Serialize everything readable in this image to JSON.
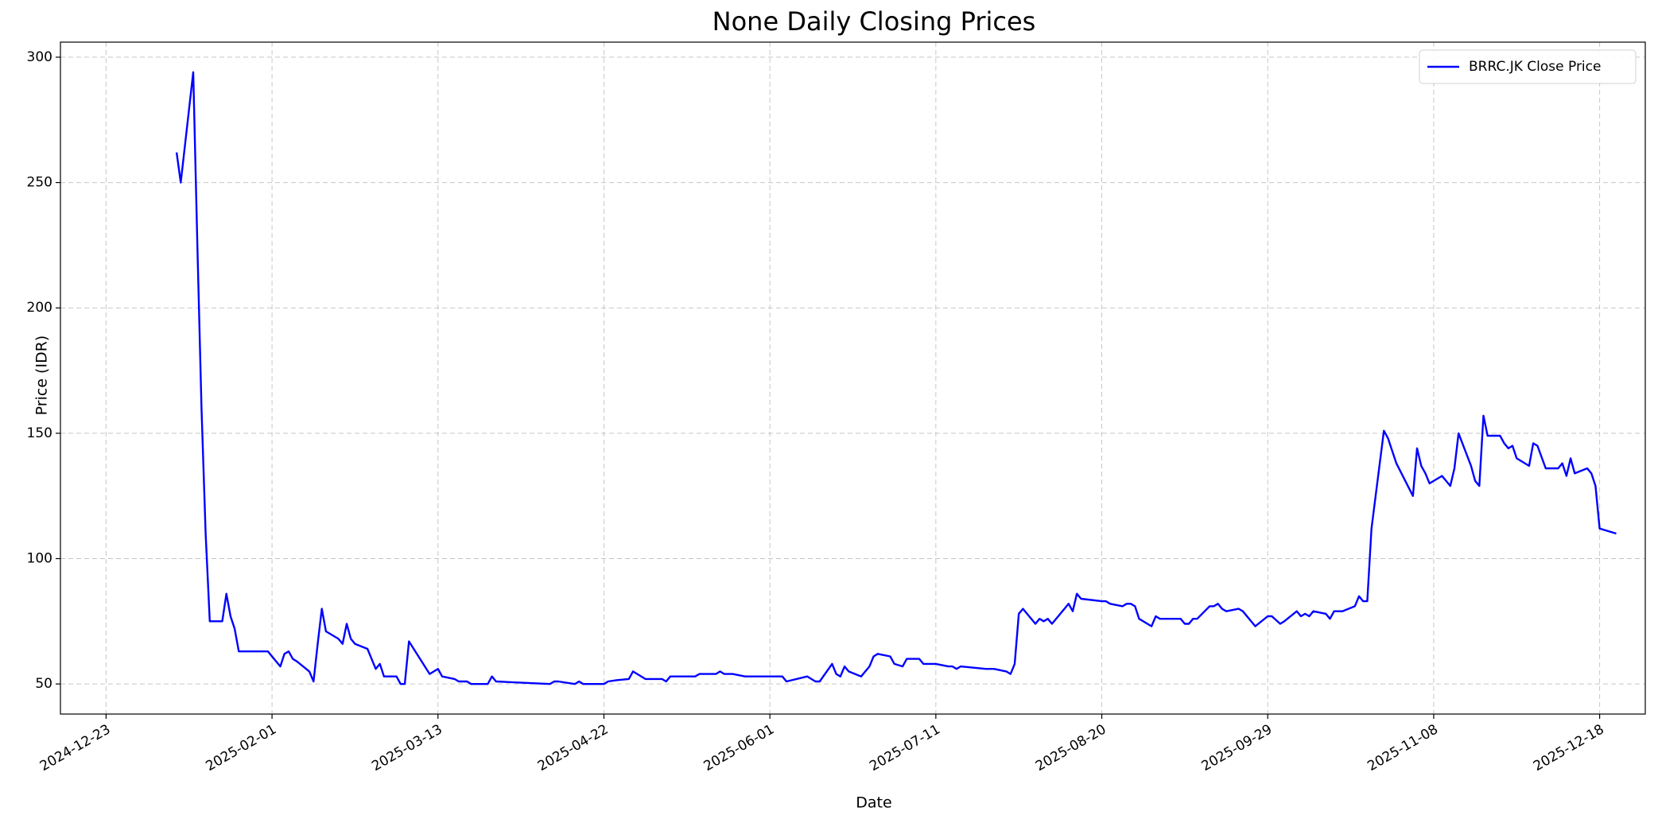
{
  "chart_data": {
    "type": "line",
    "title": "None Daily Closing Prices",
    "x_label": "Date",
    "y_label": "Price (IDR)",
    "x": [
      "2025-01-09",
      "2025-01-10",
      "2025-01-13",
      "2025-01-14",
      "2025-01-15",
      "2025-01-16",
      "2025-01-17",
      "2025-01-20",
      "2025-01-21",
      "2025-01-22",
      "2025-01-23",
      "2025-01-24",
      "2025-01-31",
      "2025-02-03",
      "2025-02-04",
      "2025-02-05",
      "2025-02-06",
      "2025-02-07",
      "2025-02-10",
      "2025-02-11",
      "2025-02-12",
      "2025-02-13",
      "2025-02-14",
      "2025-02-17",
      "2025-02-18",
      "2025-02-19",
      "2025-02-20",
      "2025-02-21",
      "2025-02-24",
      "2025-02-26",
      "2025-02-27",
      "2025-02-28",
      "2025-03-03",
      "2025-03-04",
      "2025-03-05",
      "2025-03-06",
      "2025-03-11",
      "2025-03-13",
      "2025-03-14",
      "2025-03-17",
      "2025-03-18",
      "2025-03-20",
      "2025-03-21",
      "2025-03-25",
      "2025-03-26",
      "2025-03-27",
      "2025-04-09",
      "2025-04-10",
      "2025-04-11",
      "2025-04-15",
      "2025-04-16",
      "2025-04-17",
      "2025-04-22",
      "2025-04-23",
      "2025-04-25",
      "2025-04-28",
      "2025-04-29",
      "2025-05-02",
      "2025-05-06",
      "2025-05-07",
      "2025-05-08",
      "2025-05-14",
      "2025-05-15",
      "2025-05-19",
      "2025-05-20",
      "2025-05-21",
      "2025-05-23",
      "2025-05-26",
      "2025-06-04",
      "2025-06-05",
      "2025-06-10",
      "2025-06-12",
      "2025-06-13",
      "2025-06-16",
      "2025-06-17",
      "2025-06-18",
      "2025-06-19",
      "2025-06-20",
      "2025-06-23",
      "2025-06-25",
      "2025-06-26",
      "2025-06-27",
      "2025-06-30",
      "2025-07-01",
      "2025-07-03",
      "2025-07-04",
      "2025-07-07",
      "2025-07-08",
      "2025-07-11",
      "2025-07-14",
      "2025-07-15",
      "2025-07-16",
      "2025-07-17",
      "2025-07-23",
      "2025-07-25",
      "2025-07-28",
      "2025-07-29",
      "2025-07-30",
      "2025-07-31",
      "2025-08-01",
      "2025-08-04",
      "2025-08-05",
      "2025-08-06",
      "2025-08-07",
      "2025-08-08",
      "2025-08-12",
      "2025-08-13",
      "2025-08-14",
      "2025-08-15",
      "2025-08-20",
      "2025-08-21",
      "2025-08-22",
      "2025-08-25",
      "2025-08-26",
      "2025-08-27",
      "2025-08-28",
      "2025-08-29",
      "2025-09-01",
      "2025-09-02",
      "2025-09-03",
      "2025-09-08",
      "2025-09-09",
      "2025-09-10",
      "2025-09-11",
      "2025-09-12",
      "2025-09-15",
      "2025-09-16",
      "2025-09-17",
      "2025-09-18",
      "2025-09-19",
      "2025-09-22",
      "2025-09-23",
      "2025-09-26",
      "2025-09-29",
      "2025-09-30",
      "2025-10-02",
      "2025-10-03",
      "2025-10-06",
      "2025-10-07",
      "2025-10-08",
      "2025-10-09",
      "2025-10-10",
      "2025-10-13",
      "2025-10-14",
      "2025-10-15",
      "2025-10-17",
      "2025-10-20",
      "2025-10-21",
      "2025-10-22",
      "2025-10-23",
      "2025-10-24",
      "2025-10-27",
      "2025-10-28",
      "2025-10-29",
      "2025-10-30",
      "2025-11-03",
      "2025-11-04",
      "2025-11-05",
      "2025-11-06",
      "2025-11-07",
      "2025-11-10",
      "2025-11-12",
      "2025-11-13",
      "2025-11-14",
      "2025-11-17",
      "2025-11-18",
      "2025-11-19",
      "2025-11-20",
      "2025-11-21",
      "2025-11-24",
      "2025-11-25",
      "2025-11-26",
      "2025-11-27",
      "2025-11-28",
      "2025-12-01",
      "2025-12-02",
      "2025-12-03",
      "2025-12-05",
      "2025-12-08",
      "2025-12-09",
      "2025-12-10",
      "2025-12-11",
      "2025-12-12",
      "2025-12-15",
      "2025-12-16",
      "2025-12-17",
      "2025-12-18",
      "2025-12-22"
    ],
    "series": [
      {
        "name": "BRRC.JK Close Price",
        "color": "#0000ff",
        "values": [
          262,
          250,
          294,
          225,
          160,
          110,
          75,
          75,
          86,
          77,
          72,
          63,
          63,
          57,
          62,
          63,
          60,
          59,
          55,
          51,
          66,
          80,
          71,
          68,
          66,
          74,
          68,
          66,
          64,
          56,
          58,
          53,
          53,
          50,
          50,
          67,
          54,
          56,
          53,
          52,
          51,
          51,
          50,
          50,
          53,
          51,
          50,
          51,
          51,
          50,
          51,
          50,
          50,
          51,
          51.5,
          52,
          55,
          52,
          52,
          51,
          53,
          53,
          54,
          54,
          55,
          54,
          54,
          53,
          53,
          51,
          53,
          51,
          51,
          58,
          54,
          53,
          57,
          55,
          53,
          57,
          61,
          62,
          61,
          58,
          57,
          60,
          60,
          58,
          58,
          57,
          57,
          56,
          57,
          56,
          56,
          55,
          54,
          58,
          78,
          80,
          74,
          76,
          75,
          76,
          74,
          82,
          79,
          86,
          84,
          83,
          83,
          82,
          81,
          82,
          82,
          81,
          76,
          73,
          77,
          76,
          76,
          74,
          74,
          76,
          76,
          81,
          81,
          82,
          80,
          79,
          80,
          79,
          73,
          77,
          77,
          74,
          75,
          79,
          77,
          78,
          77,
          79,
          78,
          76,
          79,
          79,
          81,
          85,
          83,
          83,
          112,
          151,
          148,
          143,
          138,
          125,
          144,
          137,
          134,
          130,
          133,
          129,
          136,
          150,
          137,
          131,
          129,
          157,
          149,
          149,
          146,
          144,
          145,
          140,
          137,
          146,
          145,
          136,
          136,
          138,
          133,
          140,
          134,
          136,
          134,
          129,
          112,
          110
        ]
      }
    ],
    "xlim": [
      "2024-12-12",
      "2025-12-29"
    ],
    "xticks": [
      "2024-12-23",
      "2025-02-01",
      "2025-03-13",
      "2025-04-22",
      "2025-06-01",
      "2025-07-11",
      "2025-08-20",
      "2025-09-29",
      "2025-11-08",
      "2025-12-18"
    ],
    "ylim": [
      38,
      306
    ],
    "yticks": [
      50,
      100,
      150,
      200,
      250,
      300
    ],
    "grid": true,
    "legend": "upper right"
  }
}
